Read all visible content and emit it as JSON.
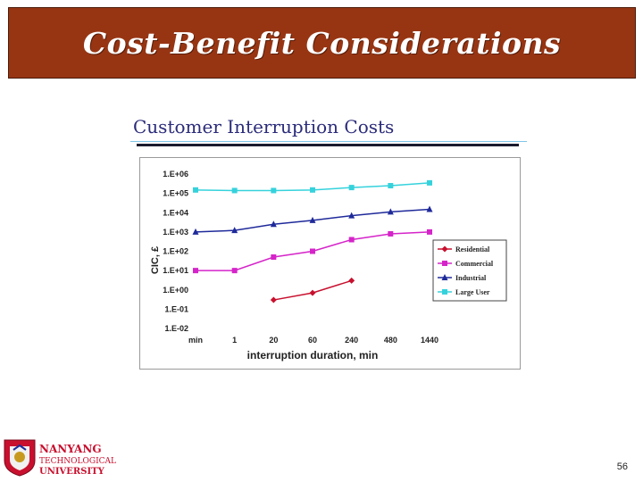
{
  "slide": {
    "title": "Cost-Benefit Considerations",
    "page_number": "56"
  },
  "figure": {
    "heading": "Customer Interruption Costs"
  },
  "logo": {
    "line1": "NANYANG",
    "line2": "TECHNOLOGICAL",
    "line3": "UNIVERSITY"
  },
  "colors": {
    "title_bar": "#973513",
    "residential": "#c8102e",
    "commercial": "#d524c9",
    "industrial": "#1f2a9a",
    "large_user": "#35d2dc"
  },
  "chart_data": {
    "type": "line",
    "categories": [
      "min",
      "1",
      "20",
      "60",
      "240",
      "480",
      "1440"
    ],
    "xlabel": "interruption duration, min",
    "ylabel": "CIC, £",
    "y_ticks": [
      "1.E-02",
      "1.E-01",
      "1.E+00",
      "1.E+01",
      "1.E+02",
      "1.E+03",
      "1.E+04",
      "1.E+05",
      "1.E+06"
    ],
    "y_scale": "log",
    "ylim": [
      0.01,
      1000000
    ],
    "legend_position": "right",
    "series": [
      {
        "name": "Residential",
        "color": "#c8102e",
        "marker": "diamond",
        "values": [
          null,
          null,
          0.3,
          0.7,
          3,
          null,
          null
        ]
      },
      {
        "name": "Commercial",
        "color": "#d524c9",
        "marker": "square",
        "values": [
          10,
          10,
          50,
          100,
          400,
          800,
          1000
        ]
      },
      {
        "name": "Industrial",
        "color": "#1f2a9a",
        "marker": "triangle",
        "values": [
          1000,
          1200,
          2500,
          4000,
          7000,
          11000,
          15000
        ]
      },
      {
        "name": "Large User",
        "color": "#35d2dc",
        "marker": "square",
        "values": [
          150000,
          140000,
          140000,
          150000,
          200000,
          250000,
          350000
        ]
      }
    ]
  }
}
